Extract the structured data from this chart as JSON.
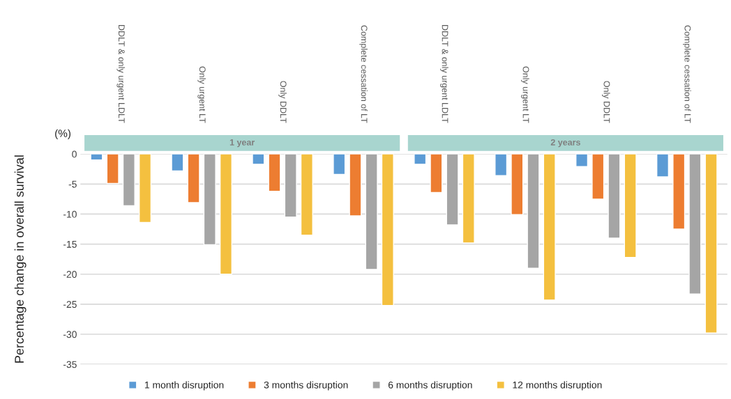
{
  "chart_data": {
    "type": "bar",
    "ylabel": "Percentage change in overall survival",
    "categories": [
      "DDLT & only urgent LDLT",
      "Only urgent LT",
      "Only DDLT",
      "Complete cessation of LT",
      "DDLT & only urgent LDLT",
      "Only urgent LT",
      "Only DDLT",
      "Complete cessation of LT"
    ],
    "series": [
      {
        "name": "1 month disruption",
        "color": "#5b9bd5",
        "values": [
          -1.0,
          -2.8,
          -1.7,
          -3.4,
          -1.7,
          -3.6,
          -2.1,
          -3.8
        ]
      },
      {
        "name": "3 months disruption",
        "color": "#ed7d31",
        "values": [
          -4.9,
          -8.1,
          -6.2,
          -10.3,
          -6.4,
          -10.1,
          -7.5,
          -12.5
        ]
      },
      {
        "name": "6 months disruption",
        "color": "#a5a5a5",
        "values": [
          -8.6,
          -15.1,
          -10.5,
          -19.2,
          -11.8,
          -19.0,
          -14.0,
          -23.3
        ]
      },
      {
        "name": "12 months disruption",
        "color": "#f4c03f",
        "values": [
          -11.4,
          -20.0,
          -13.5,
          -25.2,
          -14.8,
          -24.3,
          -17.2,
          -29.8
        ]
      }
    ],
    "annotations": [
      "(%)",
      "1 year",
      "2 years"
    ],
    "ylim": [
      -35,
      0
    ],
    "yticks": [
      -35,
      -30,
      -25,
      -20,
      -15,
      -10,
      -5,
      0
    ],
    "grid": "y",
    "legend": "bottom"
  }
}
